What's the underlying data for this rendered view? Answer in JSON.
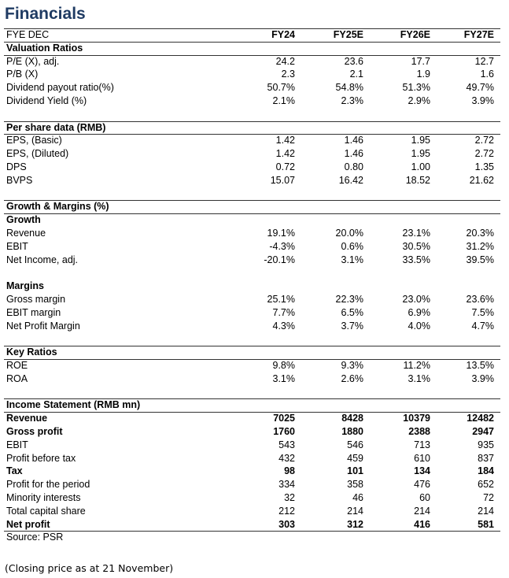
{
  "title": "Financials",
  "header": {
    "label": "FYE DEC",
    "columns": [
      "FY24",
      "FY25E",
      "FY26E",
      "FY27E"
    ]
  },
  "sections": [
    {
      "title": "Valuation Ratios",
      "groups": [
        {
          "rows": [
            {
              "label": "P/E (X), adj.",
              "values": [
                "24.2",
                "23.6",
                "17.7",
                "12.7"
              ]
            },
            {
              "label": "P/B (X)",
              "values": [
                "2.3",
                "2.1",
                "1.9",
                "1.6"
              ]
            },
            {
              "label": "Dividend payout ratio(%)",
              "values": [
                "50.7%",
                "54.8%",
                "51.3%",
                "49.7%"
              ]
            },
            {
              "label": "Dividend Yield (%)",
              "values": [
                "2.1%",
                "2.3%",
                "2.9%",
                "3.9%"
              ]
            }
          ]
        }
      ]
    },
    {
      "title": "Per share data (RMB)",
      "groups": [
        {
          "rows": [
            {
              "label": "EPS, (Basic)",
              "values": [
                "1.42",
                "1.46",
                "1.95",
                "2.72"
              ]
            },
            {
              "label": "EPS, (Diluted)",
              "values": [
                "1.42",
                "1.46",
                "1.95",
                "2.72"
              ]
            },
            {
              "label": "DPS",
              "values": [
                "0.72",
                "0.80",
                "1.00",
                "1.35"
              ]
            },
            {
              "label": "BVPS",
              "values": [
                "15.07",
                "16.42",
                "18.52",
                "21.62"
              ]
            }
          ]
        }
      ]
    },
    {
      "title": "Growth & Margins (%)",
      "groups": [
        {
          "title": "Growth",
          "rows": [
            {
              "label": "Revenue",
              "values": [
                "19.1%",
                "20.0%",
                "23.1%",
                "20.3%"
              ]
            },
            {
              "label": "EBIT",
              "values": [
                "-4.3%",
                "0.6%",
                "30.5%",
                "31.2%"
              ]
            },
            {
              "label": "Net Income, adj.",
              "values": [
                "-20.1%",
                "3.1%",
                "33.5%",
                "39.5%"
              ]
            }
          ]
        },
        {
          "title": "Margins",
          "rows": [
            {
              "label": "Gross margin",
              "values": [
                "25.1%",
                "22.3%",
                "23.0%",
                "23.6%"
              ]
            },
            {
              "label": "EBIT margin",
              "values": [
                "7.7%",
                "6.5%",
                "6.9%",
                "7.5%"
              ]
            },
            {
              "label": "Net Profit Margin",
              "values": [
                "4.3%",
                "3.7%",
                "4.0%",
                "4.7%"
              ]
            }
          ]
        }
      ]
    },
    {
      "title": "Key Ratios",
      "groups": [
        {
          "rows": [
            {
              "label": "ROE",
              "values": [
                "9.8%",
                "9.3%",
                "11.2%",
                "13.5%"
              ]
            },
            {
              "label": "ROA",
              "values": [
                "3.1%",
                "2.6%",
                "3.1%",
                "3.9%"
              ]
            }
          ]
        }
      ]
    },
    {
      "title": "Income Statement (RMB mn)",
      "groups": [
        {
          "rows": [
            {
              "label": "Revenue",
              "values": [
                "7025",
                "8428",
                "10379",
                "12482"
              ],
              "bold": true
            },
            {
              "label": "Gross profit",
              "values": [
                "1760",
                "1880",
                "2388",
                "2947"
              ],
              "bold": true
            },
            {
              "label": "EBIT",
              "values": [
                "543",
                "546",
                "713",
                "935"
              ]
            },
            {
              "label": "Profit before tax",
              "values": [
                "432",
                "459",
                "610",
                "837"
              ]
            },
            {
              "label": "Tax",
              "values": [
                "98",
                "101",
                "134",
                "184"
              ],
              "bold": true
            },
            {
              "label": "Profit for the period",
              "values": [
                "334",
                "358",
                "476",
                "652"
              ]
            },
            {
              "label": "Minority interests",
              "values": [
                "32",
                "46",
                "60",
                "72"
              ]
            },
            {
              "label": "Total capital share",
              "values": [
                "212",
                "214",
                "214",
                "214"
              ]
            },
            {
              "label": "Net profit",
              "values": [
                "303",
                "312",
                "416",
                "581"
              ],
              "bold": true
            }
          ]
        }
      ]
    }
  ],
  "source": "Source: PSR",
  "note": "(Closing price as at 21 November)"
}
